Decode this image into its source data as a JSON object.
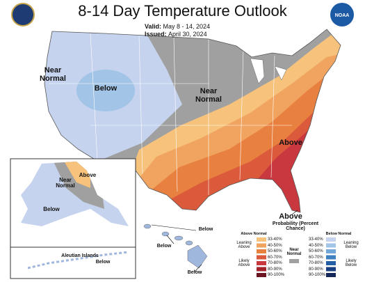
{
  "header": {
    "title": "8-14 Day Temperature Outlook",
    "valid_label": "Valid:",
    "valid_dates": "May 8 - 14, 2024",
    "issued_label": "Issued:",
    "issued_date": "April 30, 2024",
    "logo_text": "NOAA"
  },
  "map_labels": [
    "Near Normal",
    "Below",
    "Near Normal",
    "Above",
    "Above"
  ],
  "alaska_labels": [
    "Near Normal",
    "Above",
    "Below"
  ],
  "aleutian": {
    "title": "Aleutian Islands",
    "label": "Below"
  },
  "hawaii_labels": [
    "Below",
    "Below",
    "Below"
  ],
  "legend": {
    "title": "Probability (Percent Chance)",
    "above": {
      "heading": "Above Normal",
      "leaning": "Leaning Above",
      "likely": "Likely Above",
      "levels": [
        {
          "label": "33-40%",
          "color": "#f6c27c"
        },
        {
          "label": "40-50%",
          "color": "#f0a45f"
        },
        {
          "label": "50-60%",
          "color": "#e8803f"
        },
        {
          "label": "60-70%",
          "color": "#dc5a3c"
        },
        {
          "label": "70-80%",
          "color": "#c9373f"
        },
        {
          "label": "80-90%",
          "color": "#a3202d"
        },
        {
          "label": "90-100%",
          "color": "#6b1522"
        }
      ]
    },
    "near": {
      "heading": "Near Normal",
      "color": "#a0a0a0"
    },
    "below": {
      "heading": "Below Normal",
      "leaning": "Leaning Below",
      "likely": "Likely Below",
      "levels": [
        {
          "label": "33-40%",
          "color": "#c6d3ee"
        },
        {
          "label": "40-50%",
          "color": "#a2c4e7"
        },
        {
          "label": "50-60%",
          "color": "#72a7da"
        },
        {
          "label": "60-70%",
          "color": "#3f80c1"
        },
        {
          "label": "70-80%",
          "color": "#245fa5"
        },
        {
          "label": "80-90%",
          "color": "#183f80"
        },
        {
          "label": "90-100%",
          "color": "#14265a"
        }
      ]
    }
  }
}
